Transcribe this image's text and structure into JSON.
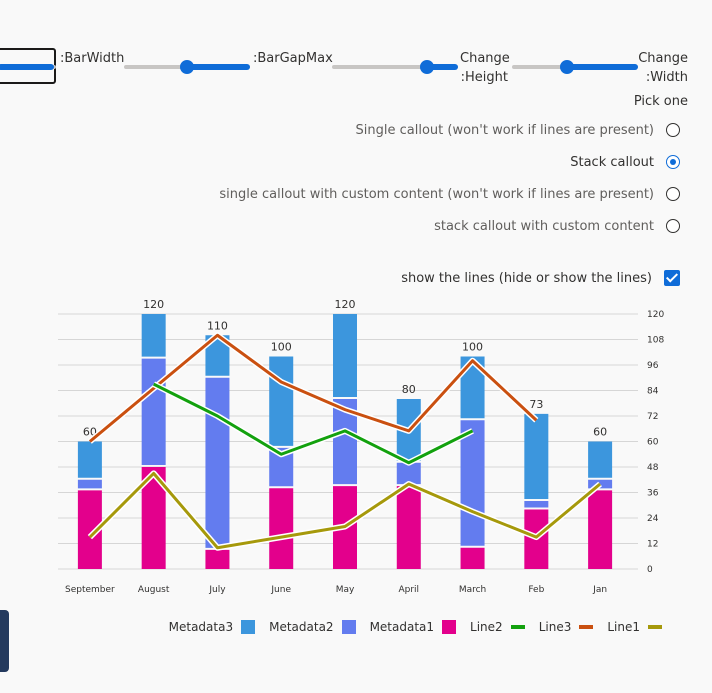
{
  "controls": {
    "bar_width_label": ":BarWidth",
    "bar_gap_max_label": ":BarGapMax",
    "change_height_label": "Change\n:Height",
    "change_width_label": "Change\n:Width",
    "sliders": {
      "bar_width": 0.95,
      "bar_gap_max": 0.5,
      "change_height": 0.75,
      "change_width": 0.43
    }
  },
  "pick_one_label": "Pick one",
  "options": [
    {
      "label": "Single callout (won't work if lines are present)",
      "selected": false
    },
    {
      "label": "Stack callout",
      "selected": true
    },
    {
      "label": "single callout with custom content (won't work if lines are present)",
      "selected": false
    },
    {
      "label": "stack callout with custom content",
      "selected": false
    }
  ],
  "show_lines": {
    "label": "show the lines (hide or show the lines)",
    "checked": true
  },
  "colors": {
    "metadata1": "#e3008c",
    "metadata2": "#637cef",
    "metadata3": "#3c96dd",
    "line1": "#a6990b",
    "line2": "#13a10e",
    "line3": "#ca5010",
    "grid": "#d6d6d6",
    "accent": "#0f6cd8"
  },
  "chart_data": {
    "type": "bar",
    "stacked": true,
    "categories": [
      "September",
      "August",
      "July",
      "June",
      "May",
      "April",
      "March",
      "Feb",
      "Jan"
    ],
    "series": [
      {
        "name": "Metadata1",
        "values": [
          37,
          48,
          9,
          38,
          39,
          39,
          10,
          28,
          37
        ]
      },
      {
        "name": "Metadata2",
        "values": [
          5,
          51,
          81,
          19,
          41,
          11,
          60,
          4,
          5
        ]
      },
      {
        "name": "Metadata3",
        "values": [
          18,
          21,
          20,
          43,
          40,
          30,
          30,
          41,
          18
        ]
      }
    ],
    "totals": [
      60,
      120,
      110,
      100,
      120,
      80,
      100,
      73,
      60
    ],
    "lines": [
      {
        "name": "Line1",
        "values": [
          15,
          45,
          10,
          15,
          20,
          40,
          27,
          15,
          40
        ]
      },
      {
        "name": "Line2",
        "values": [
          null,
          87,
          72,
          54,
          65,
          50,
          65,
          null,
          null
        ]
      },
      {
        "name": "Line3",
        "values": [
          60,
          85,
          110,
          88,
          75,
          65,
          98,
          70,
          null
        ]
      }
    ],
    "ylim": [
      0,
      120
    ],
    "y_ticks": [
      0,
      12,
      24,
      36,
      48,
      60,
      72,
      84,
      96,
      108,
      120
    ],
    "y_axis_position": "right",
    "grid": true,
    "legend_placement": "bottom-right",
    "legend_order": [
      "Metadata3",
      "Metadata2",
      "Metadata1",
      "Line2",
      "Line3",
      "Line1"
    ]
  }
}
